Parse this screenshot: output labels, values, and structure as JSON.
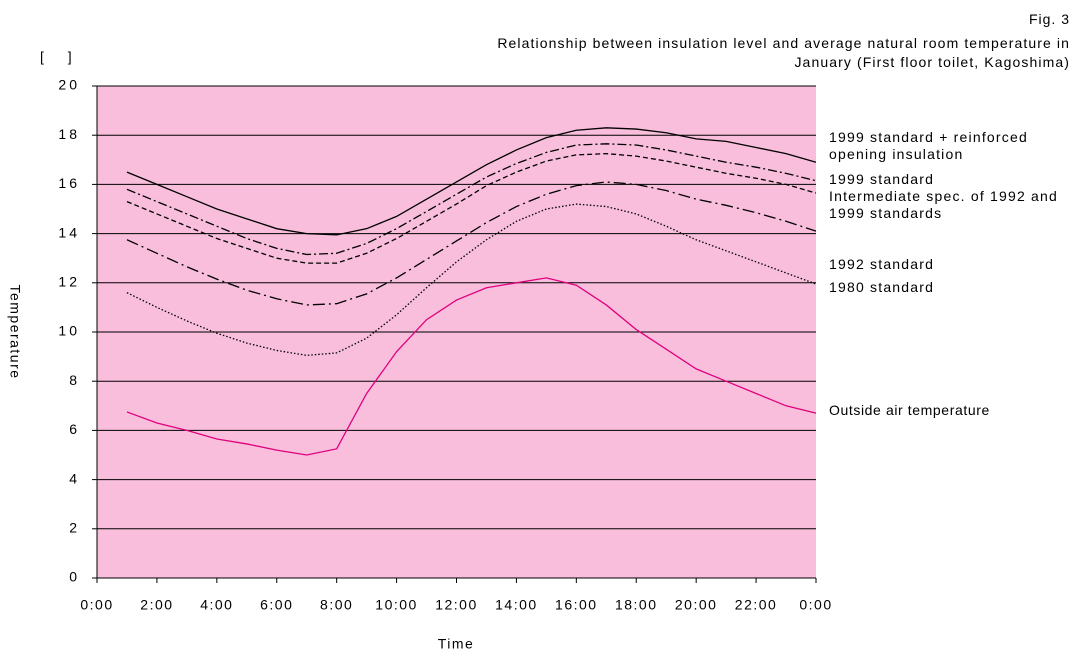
{
  "chart_data": {
    "type": "line",
    "figure_label": "Fig. 3",
    "title": "Relationship between insulation level and average natural room temperature in January (First floor toilet, Kagoshima)",
    "unit_label": "[ ]",
    "ylabel": "Temperature",
    "xlabel": "Time",
    "background": "#f8bedb",
    "grid": true,
    "x": [
      1,
      2,
      3,
      4,
      5,
      6,
      7,
      8,
      9,
      10,
      11,
      12,
      13,
      14,
      15,
      16,
      17,
      18,
      19,
      20,
      21,
      22,
      23,
      24
    ],
    "xlim": [
      0,
      24
    ],
    "xticks": [
      {
        "value": 0,
        "label": "0:00"
      },
      {
        "value": 2,
        "label": "2:00"
      },
      {
        "value": 4,
        "label": "4:00"
      },
      {
        "value": 6,
        "label": "6:00"
      },
      {
        "value": 8,
        "label": "8:00"
      },
      {
        "value": 10,
        "label": "10:00"
      },
      {
        "value": 12,
        "label": "12:00"
      },
      {
        "value": 14,
        "label": "14:00"
      },
      {
        "value": 16,
        "label": "16:00"
      },
      {
        "value": 18,
        "label": "18:00"
      },
      {
        "value": 20,
        "label": "20:00"
      },
      {
        "value": 22,
        "label": "22:00"
      },
      {
        "value": 24,
        "label": "0:00"
      }
    ],
    "ylim": [
      0,
      20
    ],
    "yticks": [
      0,
      2,
      4,
      6,
      8,
      10,
      12,
      14,
      16,
      18,
      20
    ],
    "series": [
      {
        "name": "1999 standard + reinforced opening insulation",
        "color": "#000000",
        "dash": "solid",
        "values": [
          16.5,
          16.0,
          15.5,
          15.0,
          14.6,
          14.2,
          14.0,
          13.95,
          14.2,
          14.7,
          15.4,
          16.1,
          16.8,
          17.4,
          17.9,
          18.2,
          18.3,
          18.25,
          18.1,
          17.85,
          17.75,
          17.5,
          17.25,
          16.9
        ]
      },
      {
        "name": "1999 standard",
        "color": "#000000",
        "dash": "dashdot",
        "values": [
          15.8,
          15.3,
          14.8,
          14.3,
          13.8,
          13.4,
          13.15,
          13.2,
          13.6,
          14.2,
          14.9,
          15.6,
          16.3,
          16.85,
          17.3,
          17.6,
          17.65,
          17.6,
          17.4,
          17.15,
          16.9,
          16.7,
          16.45,
          16.15
        ]
      },
      {
        "name": "Intermediate spec. of 1992 and 1999 standards",
        "color": "#000000",
        "dash": "dashed",
        "values": [
          15.3,
          14.8,
          14.3,
          13.8,
          13.4,
          13.0,
          12.8,
          12.8,
          13.2,
          13.8,
          14.5,
          15.2,
          15.95,
          16.5,
          16.95,
          17.2,
          17.25,
          17.15,
          16.95,
          16.7,
          16.45,
          16.25,
          16.0,
          15.65
        ]
      },
      {
        "name": "1992 standard",
        "color": "#000000",
        "dash": "longdashdot",
        "values": [
          13.75,
          13.2,
          12.65,
          12.15,
          11.7,
          11.35,
          11.1,
          11.15,
          11.55,
          12.2,
          12.95,
          13.7,
          14.45,
          15.1,
          15.6,
          15.95,
          16.1,
          16.0,
          15.75,
          15.4,
          15.15,
          14.85,
          14.5,
          14.1
        ]
      },
      {
        "name": "1980 standard",
        "color": "#000000",
        "dash": "dotted",
        "values": [
          11.6,
          11.0,
          10.45,
          9.95,
          9.55,
          9.25,
          9.05,
          9.15,
          9.75,
          10.7,
          11.8,
          12.85,
          13.75,
          14.5,
          15.0,
          15.2,
          15.1,
          14.8,
          14.3,
          13.75,
          13.3,
          12.85,
          12.4,
          11.95
        ]
      },
      {
        "name": "Outside air temperature",
        "color": "#e0007f",
        "dash": "solid",
        "values": [
          6.75,
          6.3,
          6.0,
          5.65,
          5.45,
          5.2,
          5.0,
          5.25,
          7.5,
          9.2,
          10.5,
          11.3,
          11.8,
          12.0,
          12.2,
          11.9,
          11.1,
          10.1,
          9.3,
          8.5,
          8.0,
          7.5,
          7.0,
          6.7
        ]
      }
    ]
  }
}
